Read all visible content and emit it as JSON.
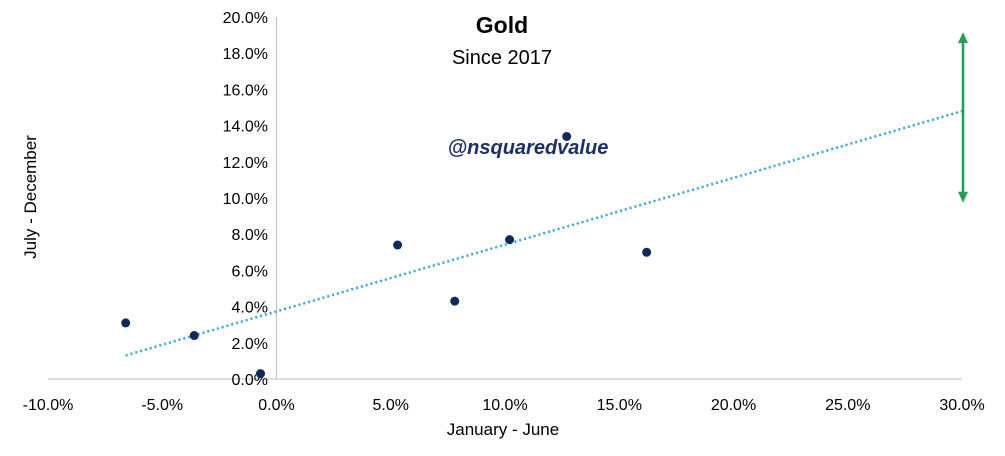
{
  "colors": {
    "points": "#0d2a5e",
    "trendline": "#29a9e0",
    "arrow": "#1fa055",
    "watermark": "#1a2f6b",
    "axis": "#bfbfbf"
  },
  "chart_data": {
    "type": "scatter",
    "title": "Gold",
    "subtitle": "Since 2017",
    "watermark": "@nsquaredvalue",
    "xlabel": "January - June",
    "ylabel": "July - December",
    "xlim": [
      -0.1,
      0.3
    ],
    "ylim": [
      0.0,
      0.2
    ],
    "x_ticks": [
      -0.1,
      -0.05,
      0.0,
      0.05,
      0.1,
      0.15,
      0.2,
      0.25,
      0.3
    ],
    "x_tick_labels": [
      "-10.0%",
      "-5.0%",
      "0.0%",
      "5.0%",
      "10.0%",
      "15.0%",
      "20.0%",
      "25.0%",
      "30.0%"
    ],
    "y_ticks": [
      0.0,
      0.02,
      0.04,
      0.06,
      0.08,
      0.1,
      0.12,
      0.14,
      0.16,
      0.18,
      0.2
    ],
    "y_tick_labels": [
      "0.0%",
      "2.0%",
      "4.0%",
      "6.0%",
      "8.0%",
      "10.0%",
      "12.0%",
      "14.0%",
      "16.0%",
      "18.0%",
      "20.0%"
    ],
    "grid": false,
    "points": [
      {
        "x": -0.066,
        "y": 0.031
      },
      {
        "x": -0.036,
        "y": 0.024
      },
      {
        "x": -0.007,
        "y": 0.003
      },
      {
        "x": 0.053,
        "y": 0.074
      },
      {
        "x": 0.078,
        "y": 0.043
      },
      {
        "x": 0.102,
        "y": 0.077
      },
      {
        "x": 0.127,
        "y": 0.134
      },
      {
        "x": 0.162,
        "y": 0.07
      }
    ],
    "trendline": {
      "style": "dotted",
      "x_start": -0.066,
      "y_start": 0.013,
      "x_end": 0.3,
      "y_end": 0.148
    },
    "range_arrow": {
      "x": 0.3,
      "y_low": 0.099,
      "y_high": 0.19
    }
  }
}
